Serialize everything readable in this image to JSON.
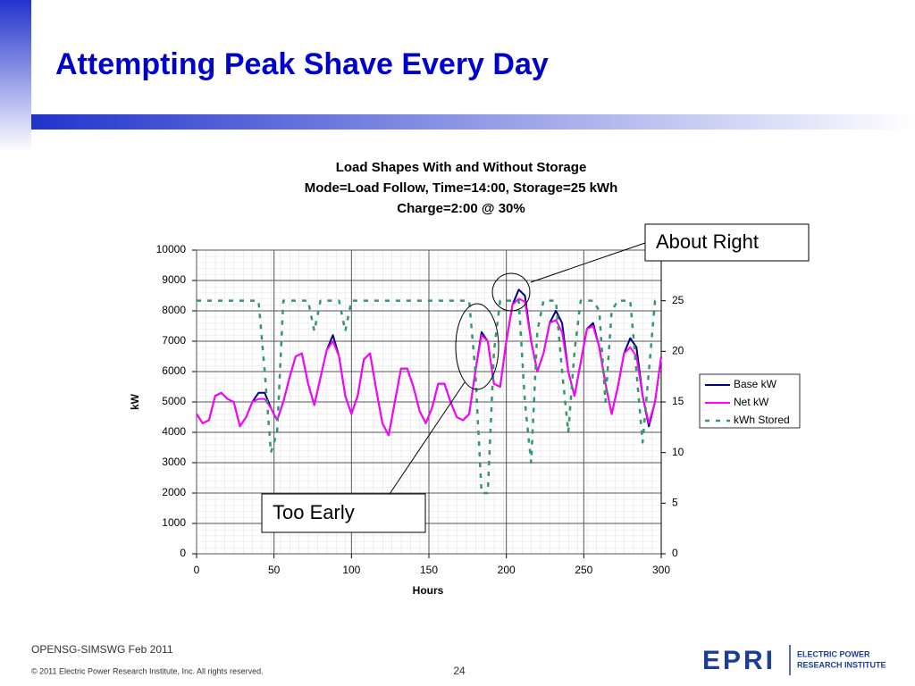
{
  "slide": {
    "title": "Attempting Peak Shave Every Day",
    "footer_left": "OPENSG-SIMSWG Feb 2011",
    "copyright": "© 2011 Electric Power Research Institute, Inc. All rights reserved.",
    "page_number": "24",
    "logo_mark": "EPRI",
    "logo_text": [
      "ELECTRIC POWER",
      "RESEARCH INSTITUTE"
    ],
    "callouts": [
      "About Right",
      "Too Early"
    ]
  },
  "chart_data": {
    "type": "line",
    "title": [
      "Load Shapes With and Without Storage",
      "Mode=Load Follow, Time=14:00, Storage=25 kWh",
      "Charge=2:00 @ 30%"
    ],
    "x_label": "Hours",
    "y_label": "kW",
    "xlim": [
      0,
      300
    ],
    "xticks": [
      0,
      50,
      100,
      150,
      200,
      250,
      300
    ],
    "ylim": [
      0,
      10000
    ],
    "yticks": [
      0,
      1000,
      2000,
      3000,
      4000,
      5000,
      6000,
      7000,
      8000,
      9000,
      10000
    ],
    "y2lim": [
      0,
      30
    ],
    "y2ticks": [
      0,
      5,
      10,
      15,
      20,
      25
    ],
    "grid": true,
    "legend": "right",
    "x": [
      0,
      4,
      8,
      12,
      16,
      20,
      24,
      28,
      32,
      36,
      40,
      44,
      48,
      52,
      56,
      60,
      64,
      68,
      72,
      76,
      80,
      84,
      88,
      92,
      96,
      100,
      104,
      108,
      112,
      116,
      120,
      124,
      128,
      132,
      136,
      140,
      144,
      148,
      152,
      156,
      160,
      164,
      168,
      172,
      176,
      180,
      184,
      188,
      192,
      196,
      200,
      204,
      208,
      212,
      216,
      220,
      224,
      228,
      232,
      236,
      240,
      244,
      248,
      252,
      256,
      260,
      264,
      268,
      272,
      276,
      280,
      284,
      288,
      292,
      296,
      300
    ],
    "series": [
      {
        "name": "Base kW",
        "color": "#000080",
        "dash": false,
        "values": [
          4600,
          4300,
          4400,
          5200,
          5300,
          5100,
          5000,
          4200,
          4500,
          5000,
          5300,
          5300,
          4800,
          4400,
          5000,
          5800,
          6500,
          6600,
          5600,
          4900,
          5800,
          6700,
          7200,
          6500,
          5200,
          4600,
          5200,
          6400,
          6600,
          5400,
          4300,
          3900,
          5000,
          6100,
          6100,
          5500,
          4700,
          4300,
          4800,
          5600,
          5600,
          5000,
          4500,
          4400,
          4600,
          6000,
          7300,
          7000,
          5600,
          5500,
          7000,
          8200,
          8700,
          8500,
          7000,
          6000,
          6600,
          7600,
          8000,
          7600,
          6000,
          5200,
          6300,
          7400,
          7600,
          6800,
          5600,
          4600,
          5500,
          6600,
          7100,
          6800,
          5200,
          4200,
          5000,
          6500
        ]
      },
      {
        "name": "Net kW",
        "color": "#ff00ff",
        "dash": false,
        "values": [
          4600,
          4300,
          4400,
          5200,
          5300,
          5100,
          5000,
          4200,
          4500,
          5000,
          5100,
          5100,
          4800,
          4400,
          5000,
          5800,
          6500,
          6600,
          5600,
          4900,
          5800,
          6700,
          7000,
          6500,
          5200,
          4600,
          5200,
          6400,
          6600,
          5400,
          4300,
          3900,
          5000,
          6100,
          6100,
          5500,
          4700,
          4300,
          4800,
          5600,
          5600,
          5000,
          4500,
          4400,
          4600,
          6000,
          7200,
          7000,
          5600,
          5500,
          7000,
          8200,
          8400,
          8300,
          7000,
          6000,
          6600,
          7600,
          7700,
          7300,
          6000,
          5200,
          6300,
          7400,
          7500,
          6800,
          5600,
          4600,
          5500,
          6600,
          6800,
          6500,
          5200,
          4300,
          5000,
          6500
        ]
      },
      {
        "name": "kWh Stored",
        "color": "#339966",
        "dash": true,
        "axis": "y2",
        "values": [
          25,
          25,
          25,
          25,
          25,
          25,
          25,
          25,
          25,
          25,
          25,
          18,
          10,
          12,
          25,
          25,
          25,
          25,
          25,
          22,
          25,
          25,
          25,
          25,
          22,
          25,
          25,
          25,
          25,
          25,
          25,
          25,
          25,
          25,
          25,
          25,
          25,
          25,
          25,
          25,
          25,
          25,
          25,
          25,
          25,
          18,
          6,
          6,
          20,
          25,
          25,
          25,
          25,
          15,
          9,
          22,
          25,
          25,
          25,
          18,
          12,
          20,
          25,
          25,
          25,
          24,
          15,
          24,
          25,
          25,
          25,
          18,
          11,
          18,
          25,
          25
        ]
      }
    ]
  }
}
